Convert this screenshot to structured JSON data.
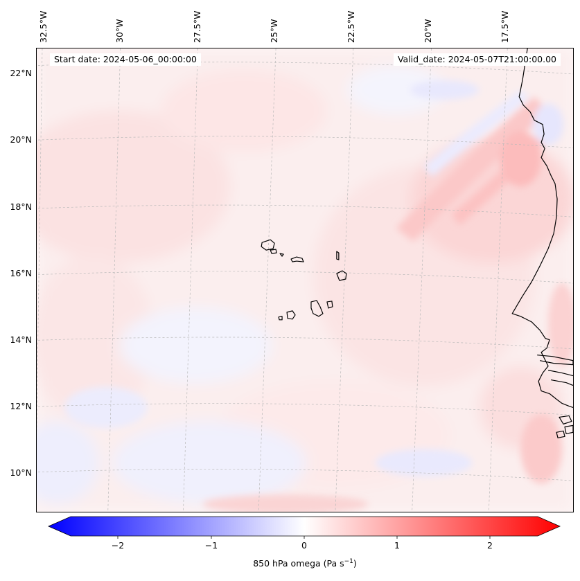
{
  "header": {
    "start_date": "Start date: 2024-05-06_00:00:00",
    "valid_date": "Valid_date: 2024-05-07T21:00:00.00"
  },
  "longitude_labels": [
    "32.5°W",
    "30°W",
    "27.5°W",
    "25°W",
    "22.5°W",
    "20°W",
    "17.5°W"
  ],
  "latitude_labels": [
    "22°N",
    "20°N",
    "18°N",
    "16°N",
    "14°N",
    "12°N",
    "10°N"
  ],
  "colorbar": {
    "ticks": [
      "−2",
      "−1",
      "0",
      "1",
      "2"
    ],
    "label_main": "850 hPa omega (Pa s",
    "label_sup": "−1",
    "label_end": ")",
    "min_color": "#0000ff",
    "mid_color": "#ffffff",
    "max_color": "#ff0000"
  },
  "map": {
    "field": "850 hPa omega",
    "region": "Cabo Verde and West African coast",
    "coast_color": "#000000"
  }
}
